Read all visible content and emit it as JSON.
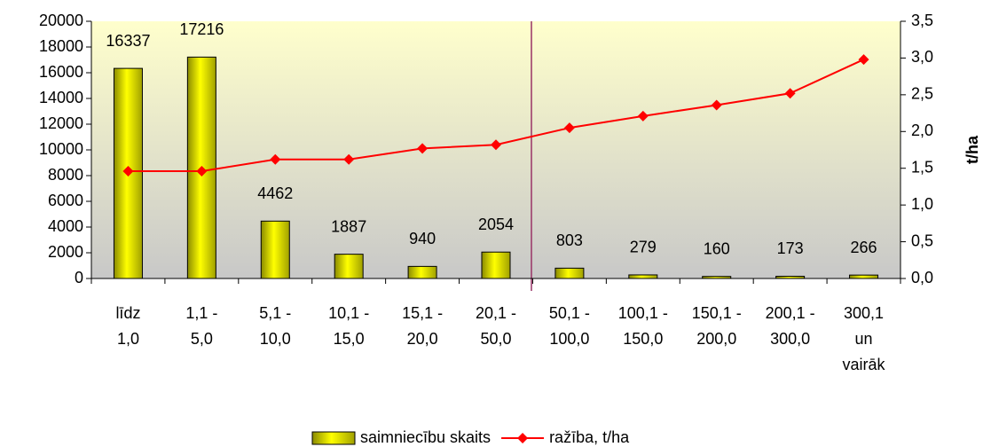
{
  "chart_data": {
    "type": "bar",
    "categories": [
      "līdz\n1,0",
      "1,1 -\n5,0",
      "5,1 -\n10,0",
      "10,1 -\n15,0",
      "15,1 -\n20,0",
      "20,1 -\n50,0",
      "50,1 -\n100,0",
      "100,1 -\n150,0",
      "150,1 -\n200,0",
      "200,1 -\n300,0",
      "300,1\nun\nvairāk"
    ],
    "series": [
      {
        "name": "saimniecību skaits",
        "type": "bar",
        "color": "#ffff00",
        "values": [
          16337,
          17216,
          4462,
          1887,
          940,
          2054,
          803,
          279,
          160,
          173,
          266
        ]
      },
      {
        "name": "ražība, t/ha",
        "type": "line",
        "axis": "y2",
        "color": "#ff0000",
        "values": [
          1.46,
          1.46,
          1.62,
          1.62,
          1.77,
          1.82,
          2.05,
          2.21,
          2.36,
          2.52,
          2.98
        ]
      }
    ],
    "ylim": [
      0,
      20000
    ],
    "yticks": [
      0,
      2000,
      4000,
      6000,
      8000,
      10000,
      12000,
      14000,
      16000,
      18000,
      20000
    ],
    "y2lim": [
      0,
      3.5
    ],
    "y2ticks": [
      {
        "value": 0,
        "label": "0,0"
      },
      {
        "value": 0.5,
        "label": "0,5"
      },
      {
        "value": 1,
        "label": "1,0"
      },
      {
        "value": 1.5,
        "label": "1,5"
      },
      {
        "value": 2,
        "label": "2,0"
      },
      {
        "value": 2.5,
        "label": "2,5"
      },
      {
        "value": 3,
        "label": "3,0"
      },
      {
        "value": 3.5,
        "label": "3,5"
      }
    ],
    "y2_label": "t/ha",
    "legend": "bottom"
  }
}
